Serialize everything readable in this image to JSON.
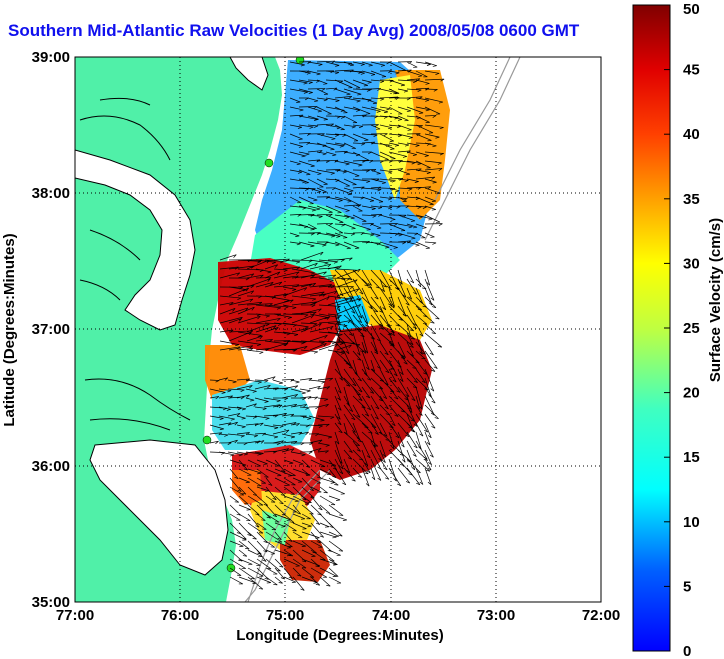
{
  "title": "Southern Mid-Atlantic Raw Velocities (1 Day Avg) 2008/05/08 0600 GMT",
  "map": {
    "xlabel": "Longitude (Degrees:Minutes)",
    "ylabel": "Latitude (Degrees:Minutes)",
    "x_ticks": [
      "77:00",
      "76:00",
      "75:00",
      "74:00",
      "73:00",
      "72:00"
    ],
    "y_ticks": [
      "39:00",
      "38:00",
      "37:00",
      "36:00",
      "35:00"
    ],
    "grid": true
  },
  "colorbar": {
    "label": "Surface Velocity (cm/s)",
    "ticks": [
      "50",
      "45",
      "40",
      "35",
      "30",
      "25",
      "20",
      "15",
      "10",
      "5",
      "0"
    ],
    "min": 0,
    "max": 50
  },
  "colors": {
    "land": "#50f0a8",
    "water": "#ffffff",
    "title": "#1010ee",
    "coastline": "#000000",
    "site_marker": "#22dd22"
  }
}
